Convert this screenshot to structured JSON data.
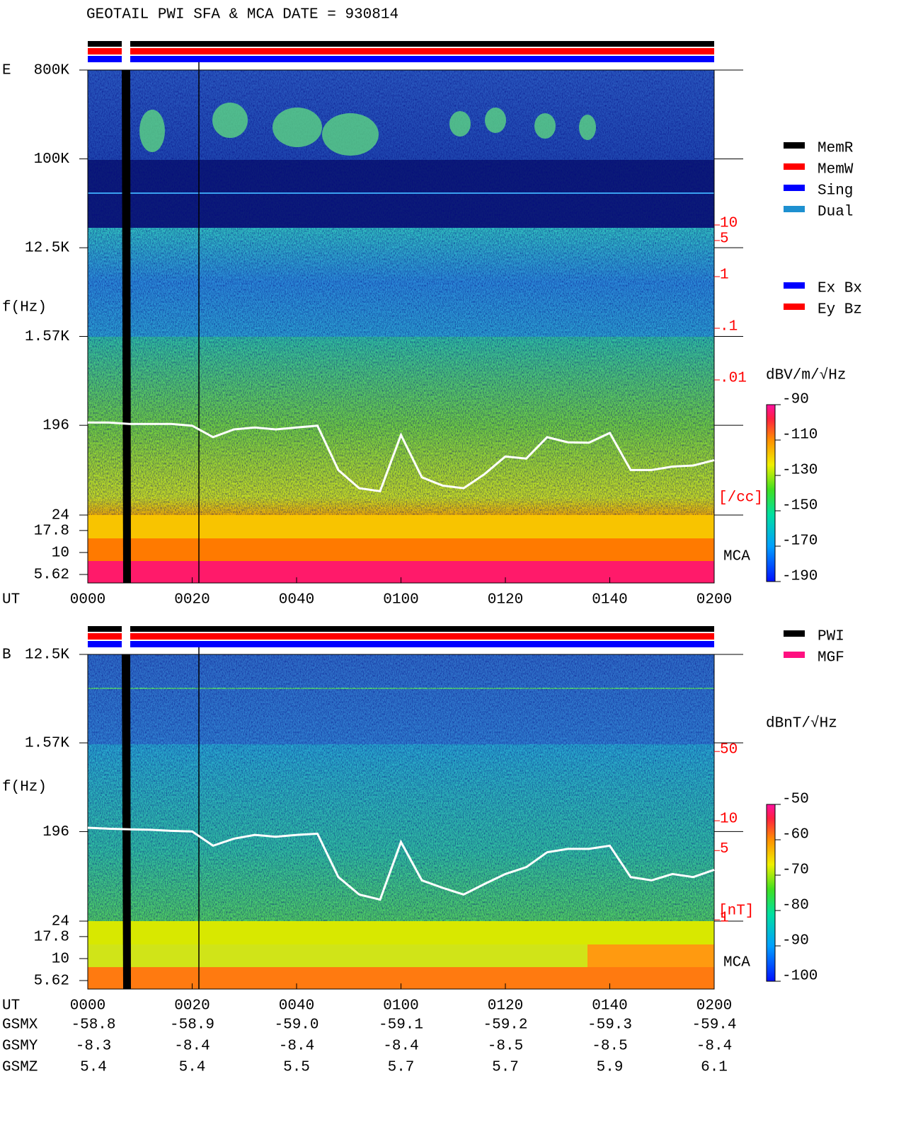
{
  "chart_data": [
    {
      "type": "spectrogram",
      "title": "GEOTAIL  PWI SFA & MCA   DATE = 930814",
      "panel": "E",
      "ylabel": "f(Hz)",
      "xlabel": "UT",
      "xlim": [
        0,
        120
      ],
      "xticks": [
        {
          "value": 0,
          "label": "0000"
        },
        {
          "value": 20,
          "label": "0020"
        },
        {
          "value": 40,
          "label": "0040"
        },
        {
          "value": 60,
          "label": "0100"
        },
        {
          "value": 80,
          "label": "0120"
        },
        {
          "value": 100,
          "label": "0140"
        },
        {
          "value": 120,
          "label": "0200"
        }
      ],
      "log_y": true,
      "ylim": [
        24,
        800000
      ],
      "yticks": [
        {
          "value": 800000,
          "label": "800K"
        },
        {
          "value": 100000,
          "label": "100K"
        },
        {
          "value": 12500,
          "label": "12.5K"
        },
        {
          "value": 1570,
          "label": "1.57K"
        },
        196,
        24
      ],
      "mca_label": "MCA",
      "mca_ylim": [
        4.5,
        26.7
      ],
      "mca_yticks": [
        17.8,
        10,
        5.62
      ],
      "y2label": "[/cc]",
      "y2lim": [
        2.42e-05,
        10000
      ],
      "y2ticks": [
        10,
        5,
        1,
        {
          "value": 0.1,
          "label": ".1"
        },
        {
          "value": 0.01,
          "label": ".01"
        }
      ],
      "trace": {
        "axis": "y2",
        "color": "#ffffff",
        "x": [
          0,
          4,
          8,
          12,
          16,
          20,
          24,
          28,
          32,
          36,
          40,
          44,
          48,
          52,
          56,
          60,
          64,
          68,
          72,
          76,
          80,
          84,
          88,
          92,
          96,
          100,
          104,
          108,
          112,
          116,
          120
        ],
        "values": [
          0.0015,
          0.0015,
          0.0014,
          0.0014,
          0.0014,
          0.0013,
          0.00078,
          0.0011,
          0.0012,
          0.0011,
          0.0012,
          0.0013,
          0.00018,
          8e-05,
          7e-05,
          0.00086,
          0.00013,
          9e-05,
          8e-05,
          0.00015,
          0.00033,
          0.0003,
          0.00078,
          0.00062,
          0.00061,
          0.00094,
          0.00018,
          0.00018,
          0.00021,
          0.00022,
          0.00028
        ]
      },
      "colorbar": {
        "label": "dBV/m/√Hz",
        "lim": [
          -190,
          -90
        ],
        "ticks": [
          -90,
          -110,
          -130,
          -150,
          -170,
          -190
        ]
      },
      "legends": [
        [
          {
            "label": "MemR",
            "color": "#000000"
          },
          {
            "label": "MemW",
            "color": "#ff0000"
          },
          {
            "label": "Sing",
            "color": "#0000ff"
          },
          {
            "label": "Dual",
            "color": "#1e90d0"
          }
        ],
        [
          {
            "label": "Ex Bx",
            "color": "#0000ff"
          },
          {
            "label": "Ey Bz",
            "color": "#ff0000"
          }
        ]
      ]
    },
    {
      "type": "spectrogram",
      "panel": "B",
      "ylabel": "f(Hz)",
      "xlabel": "UT",
      "xlim": [
        0,
        120
      ],
      "xticks": [
        {
          "value": 0,
          "label": "0000"
        },
        {
          "value": 20,
          "label": "0020"
        },
        {
          "value": 40,
          "label": "0040"
        },
        {
          "value": 60,
          "label": "0100"
        },
        {
          "value": 80,
          "label": "0120"
        },
        {
          "value": 100,
          "label": "0140"
        },
        {
          "value": 120,
          "label": "0200"
        }
      ],
      "log_y": true,
      "ylim": [
        24,
        12500
      ],
      "yticks": [
        {
          "value": 12500,
          "label": "12.5K"
        },
        {
          "value": 1570,
          "label": "1.57K"
        },
        196,
        24
      ],
      "mca_label": "MCA",
      "mca_ylim": [
        4.5,
        26.7
      ],
      "mca_yticks": [
        17.8,
        10,
        5.62
      ],
      "y2label": "[nT]",
      "y2lim": [
        0.97,
        477
      ],
      "y2ticks": [
        50,
        10,
        5,
        1
      ],
      "trace": {
        "axis": "y2",
        "color": "#ffffff",
        "x": [
          0,
          4,
          8,
          12,
          16,
          20,
          24,
          28,
          32,
          36,
          40,
          44,
          48,
          52,
          56,
          60,
          64,
          68,
          72,
          76,
          80,
          84,
          88,
          92,
          96,
          100,
          104,
          108,
          112,
          116,
          120
        ],
        "values": [
          8.5,
          8.3,
          8.2,
          8.1,
          7.9,
          7.8,
          5.6,
          6.6,
          7.2,
          6.9,
          7.2,
          7.4,
          2.7,
          1.8,
          1.6,
          6.1,
          2.5,
          2.1,
          1.8,
          2.3,
          2.9,
          3.4,
          4.8,
          5.2,
          5.2,
          5.6,
          2.7,
          2.5,
          2.9,
          2.7,
          3.2
        ]
      },
      "colorbar": {
        "label": "dBnT/√Hz",
        "lim": [
          -100,
          -50
        ],
        "ticks": [
          -50,
          -60,
          -70,
          -80,
          -90,
          -100
        ]
      },
      "legends": [
        [
          {
            "label": "PWI",
            "color": "#000000"
          },
          {
            "label": "MGF",
            "color": "#ff1080"
          }
        ]
      ]
    }
  ],
  "orbit": {
    "rows": [
      {
        "name": "GSMX",
        "values": [
          "-58.8",
          "-58.9",
          "-59.0",
          "-59.1",
          "-59.2",
          "-59.3",
          "-59.4"
        ]
      },
      {
        "name": "GSMY",
        "values": [
          "-8.3",
          "-8.4",
          "-8.4",
          "-8.4",
          "-8.5",
          "-8.5",
          "-8.4"
        ]
      },
      {
        "name": "GSMZ",
        "values": [
          "5.4",
          "5.4",
          "5.5",
          "5.7",
          "5.7",
          "5.9",
          "6.1"
        ]
      }
    ]
  }
}
